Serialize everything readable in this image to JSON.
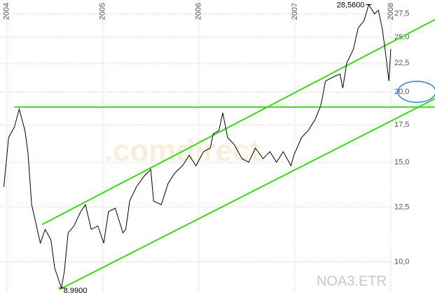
{
  "chart_data": {
    "type": "line",
    "log_y": true,
    "grid": true,
    "xlim": [
      2003.93,
      2008.46
    ],
    "xticks": [
      2004,
      2005,
      2006,
      2007,
      2008
    ],
    "ylim": [
      8.81,
      29.1
    ],
    "yticks": [
      {
        "value": 10,
        "label": "10,0"
      },
      {
        "value": 12.5,
        "label": "12,5"
      },
      {
        "value": 15,
        "label": "15,0"
      },
      {
        "value": 17.5,
        "label": "17,5"
      },
      {
        "value": 20,
        "label": "20,0"
      },
      {
        "value": 22.5,
        "label": "22,5"
      },
      {
        "value": 25,
        "label": "25,0"
      },
      {
        "value": 27.5,
        "label": "27,5"
      }
    ],
    "watermark": ".comdirect",
    "symbol": "NOA3.ETR",
    "x": [
      2003.97,
      2004.02,
      2004.08,
      2004.13,
      2004.19,
      2004.22,
      2004.26,
      2004.31,
      2004.35,
      2004.4,
      2004.46,
      2004.5,
      2004.57,
      2004.6,
      2004.64,
      2004.7,
      2004.77,
      2004.82,
      2004.88,
      2004.95,
      2005.01,
      2005.06,
      2005.13,
      2005.21,
      2005.24,
      2005.28,
      2005.35,
      2005.43,
      2005.5,
      2005.53,
      2005.61,
      2005.68,
      2005.75,
      2005.83,
      2005.9,
      2005.97,
      2006.05,
      2006.12,
      2006.15,
      2006.21,
      2006.25,
      2006.3,
      2006.37,
      2006.45,
      2006.52,
      2006.59,
      2006.67,
      2006.74,
      2006.81,
      2006.88,
      2006.96,
      2006.99,
      2007.07,
      2007.14,
      2007.21,
      2007.27,
      2007.32,
      2007.39,
      2007.47,
      2007.5,
      2007.54,
      2007.61,
      2007.66,
      2007.72,
      2007.77,
      2007.83,
      2007.87,
      2007.91,
      2007.94,
      2007.98,
      2008.0
    ],
    "series": [
      {
        "color": "#000000",
        "values": [
          13.58,
          16.61,
          17.34,
          18.64,
          17.09,
          15.68,
          12.63,
          11.58,
          10.8,
          11.42,
          10.94,
          9.75,
          8.99,
          9.61,
          11.26,
          11.58,
          12.28,
          12.63,
          11.42,
          11.58,
          10.8,
          12.28,
          12.45,
          11.26,
          11.42,
          12.82,
          13.58,
          14.18,
          14.58,
          12.82,
          12.63,
          13.77,
          14.37,
          14.8,
          15.45,
          14.8,
          15.68,
          15.91,
          16.85,
          17.09,
          18.37,
          16.61,
          16.13,
          15.23,
          15.02,
          15.91,
          15.23,
          15.68,
          15.02,
          15.68,
          14.8,
          15.45,
          16.61,
          17.09,
          17.85,
          18.91,
          20.91,
          21.22,
          21.52,
          20.32,
          22.48,
          23.81,
          25.96,
          26.72,
          28.56,
          27.5,
          27.9,
          25.96,
          23.81,
          20.91,
          23.81
        ]
      }
    ],
    "trend_lines": [
      {
        "color": "#33dd11",
        "x": [
          2004.37,
          2008.46
        ],
        "y": [
          11.65,
          26.87
        ]
      },
      {
        "color": "#33dd11",
        "x": [
          2004.55,
          2008.46
        ],
        "y": [
          8.94,
          19.46
        ]
      },
      {
        "color": "#33dd11",
        "x": [
          2004.08,
          2008.46
        ],
        "y": [
          18.8,
          18.8
        ]
      }
    ],
    "annotations": [
      {
        "text": "28,5600",
        "x": 2007.77,
        "y": 28.56
      },
      {
        "text": "8,9900",
        "x": 2004.57,
        "y": 8.99
      }
    ]
  }
}
